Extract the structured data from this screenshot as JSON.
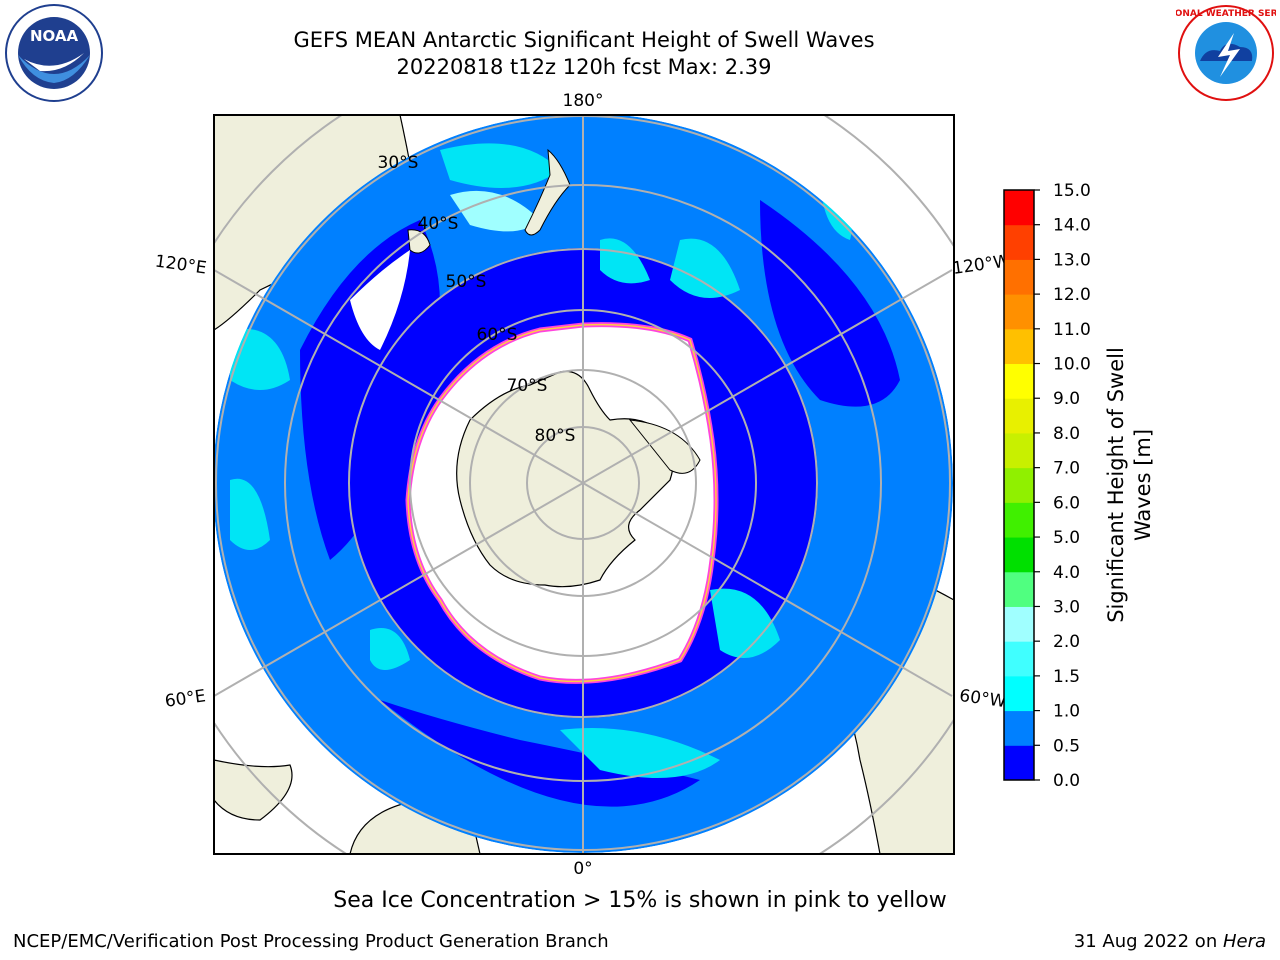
{
  "header": {
    "title_line1": "GEFS MEAN Antarctic Significant Height of Swell Waves",
    "title_line2": "20220818 t12z 120h fcst   Max: 2.39"
  },
  "logos": {
    "noaa_text": "NOAA",
    "nws_text": "NATIONAL WEATHER SERVICE"
  },
  "map": {
    "lon_labels": {
      "top": "180°",
      "bottom": "0°",
      "upper_left": "120°E",
      "upper_right": "120°W",
      "lower_left": "60°E",
      "lower_right": "60°W"
    },
    "lat_labels": [
      "30°S",
      "40°S",
      "50°S",
      "60°S",
      "70°S",
      "80°S"
    ],
    "colors": {
      "ocean_dark": "#0000ff",
      "ocean_mid": "#0080ff",
      "ocean_light": "#00e5f5",
      "land": "#efefdc",
      "ice": "#ffffff",
      "ice_edge": "#ff44dd",
      "grid": "#b0b0b0"
    }
  },
  "colorbar": {
    "label_line1": "Significant Height of Swell",
    "label_line2": "Waves [m]",
    "ticks": [
      "0.0",
      "0.5",
      "1.0",
      "1.5",
      "2.0",
      "3.0",
      "4.0",
      "5.0",
      "6.0",
      "7.0",
      "8.0",
      "9.0",
      "10.0",
      "11.0",
      "12.0",
      "13.0",
      "14.0",
      "15.0"
    ],
    "colors": [
      "#0000ff",
      "#0080ff",
      "#00ffff",
      "#40ffff",
      "#a0ffff",
      "#50ff80",
      "#00e000",
      "#40f000",
      "#90f000",
      "#c8f000",
      "#e8f000",
      "#ffff00",
      "#ffc000",
      "#ff9000",
      "#ff7000",
      "#ff4000",
      "#ff0000"
    ]
  },
  "note": "Sea Ice Concentration > 15% is shown in pink to yellow",
  "footer": {
    "left": "NCEP/EMC/Verification Post Processing Product Generation Branch",
    "date": "31 Aug 2022 on ",
    "host": "Hera"
  }
}
